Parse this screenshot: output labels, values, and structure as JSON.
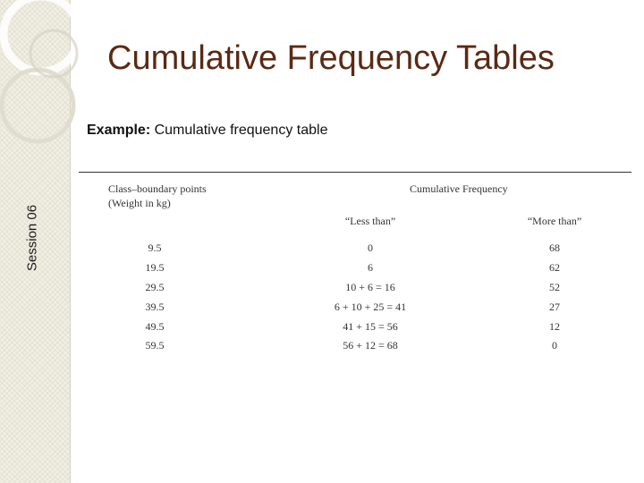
{
  "sidebar": {
    "session_label": "Session 06"
  },
  "slide": {
    "title": "Cumulative Frequency Tables",
    "subtitle_bold": "Example:",
    "subtitle_text": " Cumulative frequency table"
  },
  "table": {
    "header_col1_line1": "Class–boundary  points",
    "header_col1_line2": "(Weight  in  kg)",
    "header_group": "Cumulative  Frequency",
    "header_less": "“Less  than”",
    "header_more": "“More  than”",
    "rows": [
      {
        "boundary": "9.5",
        "less": "0",
        "more": "68"
      },
      {
        "boundary": "19.5",
        "less": "6",
        "more": "62"
      },
      {
        "boundary": "29.5",
        "less": "10 + 6 = 16",
        "more": "52"
      },
      {
        "boundary": "39.5",
        "less": "6 + 10 + 25 = 41",
        "more": "27"
      },
      {
        "boundary": "49.5",
        "less": "41 + 15 = 56",
        "more": "12"
      },
      {
        "boundary": "59.5",
        "less": "56 + 12 = 68",
        "more": "0"
      }
    ]
  }
}
